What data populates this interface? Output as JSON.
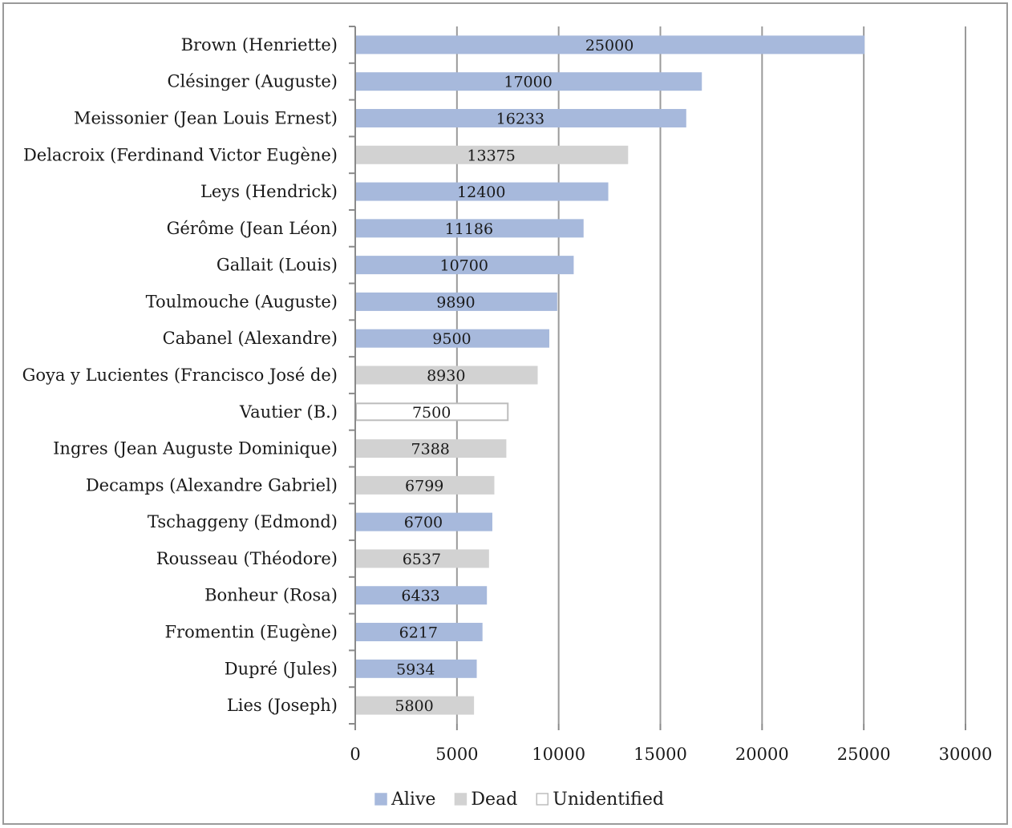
{
  "chart_data": {
    "type": "bar",
    "orientation": "horizontal",
    "categories": [
      "Brown (Henriette)",
      "Clésinger (Auguste)",
      "Meissonier (Jean Louis Ernest)",
      "Delacroix (Ferdinand Victor Eugène)",
      "Leys (Hendrick)",
      "Gérôme (Jean Léon)",
      "Gallait (Louis)",
      "Toulmouche (Auguste)",
      "Cabanel (Alexandre)",
      "Goya y Lucientes (Francisco José de)",
      "Vautier (B.)",
      "Ingres (Jean Auguste Dominique)",
      "Decamps (Alexandre Gabriel)",
      "Tschaggeny (Edmond)",
      "Rousseau (Théodore)",
      "Bonheur (Rosa)",
      "Fromentin (Eugène)",
      "Dupré (Jules)",
      "Lies (Joseph)"
    ],
    "values": [
      25000,
      17000,
      16233,
      13375,
      12400,
      11186,
      10700,
      9890,
      9500,
      8930,
      7500,
      7388,
      6799,
      6700,
      6537,
      6433,
      6217,
      5934,
      5800
    ],
    "status": [
      "Alive",
      "Alive",
      "Alive",
      "Dead",
      "Alive",
      "Alive",
      "Alive",
      "Alive",
      "Alive",
      "Dead",
      "Unidentified",
      "Dead",
      "Dead",
      "Alive",
      "Dead",
      "Alive",
      "Alive",
      "Alive",
      "Dead"
    ],
    "legend": [
      {
        "name": "Alive",
        "color": "#a7b9dc",
        "stroke": "#a7b9dc"
      },
      {
        "name": "Dead",
        "color": "#d2d2d2",
        "stroke": "#d2d2d2"
      },
      {
        "name": "Unidentified",
        "color": "#ffffff",
        "stroke": "#bdbdbd"
      }
    ],
    "xlim": [
      0,
      30000
    ],
    "xticks": [
      0,
      5000,
      10000,
      15000,
      20000,
      25000,
      30000
    ],
    "grid": true,
    "gridline_color": "#9a9a9a",
    "legend_position": "bottom",
    "data_labels": true
  }
}
